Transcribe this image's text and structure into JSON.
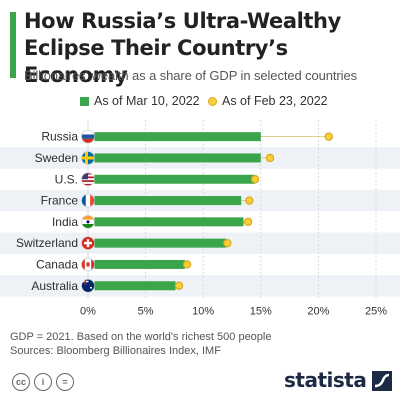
{
  "header": {
    "title": "How Russia’s Ultra-Wealthy Eclipse Their Country’s Economy",
    "subtitle": "Billionaires' wealth as a share of GDP in selected countries"
  },
  "colors": {
    "accent": "#3aa54a",
    "bar": "#3aa54a",
    "dot_fill": "#f6cf3b",
    "dot_stroke": "#d9a81a",
    "band": "#eef1f5"
  },
  "chart_data": {
    "type": "bar",
    "orientation": "horizontal",
    "categories": [
      "Russia",
      "Sweden",
      "U.S.",
      "France",
      "India",
      "Switzerland",
      "Canada",
      "Australia"
    ],
    "flag_icons": [
      "flag-russia-icon",
      "flag-sweden-icon",
      "flag-us-icon",
      "flag-france-icon",
      "flag-india-icon",
      "flag-switzerland-icon",
      "flag-canada-icon",
      "flag-australia-icon"
    ],
    "series": [
      {
        "name": "As of Mar 10, 2022",
        "style": "bar",
        "values": [
          15.0,
          15.0,
          14.5,
          13.3,
          13.5,
          12.0,
          8.4,
          7.6
        ]
      },
      {
        "name": "As of Feb 23, 2022",
        "style": "dot",
        "values": [
          20.9,
          15.8,
          14.5,
          14.0,
          13.9,
          12.1,
          8.6,
          7.9
        ]
      }
    ],
    "xlim": [
      0,
      25
    ],
    "xticks": [
      "0%",
      "5%",
      "10%",
      "15%",
      "20%",
      "25%"
    ],
    "legend_position": "top",
    "grid": true
  },
  "footer": {
    "note": "GDP = 2021. Based on the world's richest 500 people",
    "sources": "Sources: Bloomberg Billionaires Index, IMF",
    "license_icons": [
      "cc-icon",
      "by-icon",
      "equals-icon"
    ],
    "license_text": [
      "cc",
      "i",
      "="
    ],
    "brand": "statista"
  }
}
